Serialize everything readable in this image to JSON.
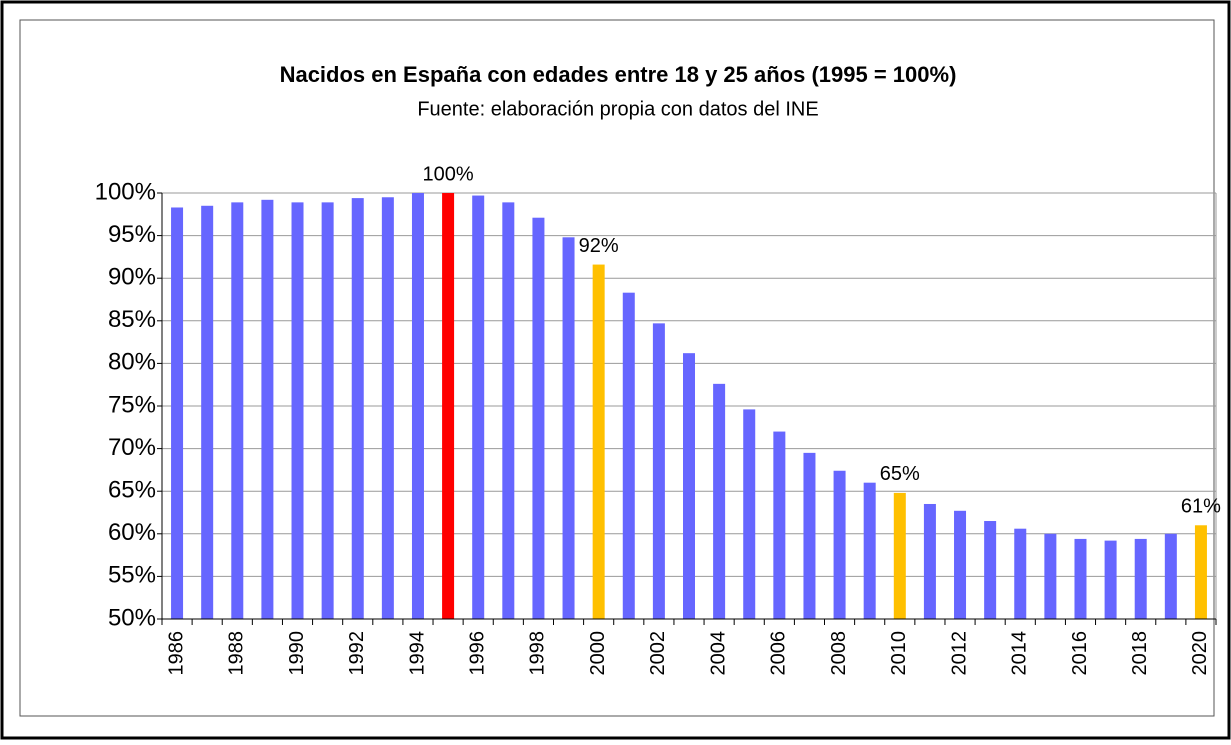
{
  "chart_data": {
    "type": "bar",
    "title": "Nacidos en España con edades entre 18 y 25 años (1995 = 100%)",
    "subtitle": "Fuente: elaboración propia con datos del INE",
    "categories": [
      "1986",
      null,
      "1988",
      null,
      "1990",
      null,
      "1992",
      null,
      "1994",
      null,
      "1996",
      null,
      "1998",
      null,
      "2000",
      null,
      "2002",
      null,
      "2004",
      null,
      "2006",
      null,
      "2008",
      null,
      "2010",
      null,
      "2012",
      null,
      "2014",
      null,
      "2016",
      null,
      "2018",
      null,
      "2020"
    ],
    "values": [
      98.3,
      98.5,
      98.9,
      99.2,
      98.9,
      98.9,
      99.4,
      99.5,
      100,
      100,
      99.7,
      98.9,
      97.1,
      94.8,
      91.6,
      88.3,
      84.7,
      81.2,
      77.6,
      74.6,
      72.0,
      69.5,
      67.4,
      66.0,
      64.8,
      63.5,
      62.7,
      61.5,
      60.6,
      60.0,
      59.4,
      59.2,
      59.4,
      60.0,
      61.0
    ],
    "value_labels": [
      null,
      null,
      null,
      null,
      null,
      null,
      null,
      null,
      null,
      "100%",
      null,
      null,
      null,
      null,
      "92%",
      null,
      null,
      null,
      null,
      null,
      null,
      null,
      null,
      null,
      "65%",
      null,
      null,
      null,
      null,
      null,
      null,
      null,
      null,
      null,
      "61%"
    ],
    "colors": [
      "#6666ff",
      "#6666ff",
      "#6666ff",
      "#6666ff",
      "#6666ff",
      "#6666ff",
      "#6666ff",
      "#6666ff",
      "#6666ff",
      "#ff0000",
      "#6666ff",
      "#6666ff",
      "#6666ff",
      "#6666ff",
      "#ffc000",
      "#6666ff",
      "#6666ff",
      "#6666ff",
      "#6666ff",
      "#6666ff",
      "#6666ff",
      "#6666ff",
      "#6666ff",
      "#6666ff",
      "#ffc000",
      "#6666ff",
      "#6666ff",
      "#6666ff",
      "#6666ff",
      "#6666ff",
      "#6666ff",
      "#6666ff",
      "#6666ff",
      "#6666ff",
      "#ffc000"
    ],
    "ylim": [
      50,
      100
    ],
    "yticks": [
      {
        "value": 50,
        "label": "50%"
      },
      {
        "value": 55,
        "label": "55%"
      },
      {
        "value": 60,
        "label": "60%"
      },
      {
        "value": 65,
        "label": "65%"
      },
      {
        "value": 70,
        "label": "70%"
      },
      {
        "value": 75,
        "label": "75%"
      },
      {
        "value": 80,
        "label": "80%"
      },
      {
        "value": 85,
        "label": "85%"
      },
      {
        "value": 90,
        "label": "90%"
      },
      {
        "value": 95,
        "label": "95%"
      },
      {
        "value": 100,
        "label": "100%"
      }
    ],
    "grid": true
  }
}
